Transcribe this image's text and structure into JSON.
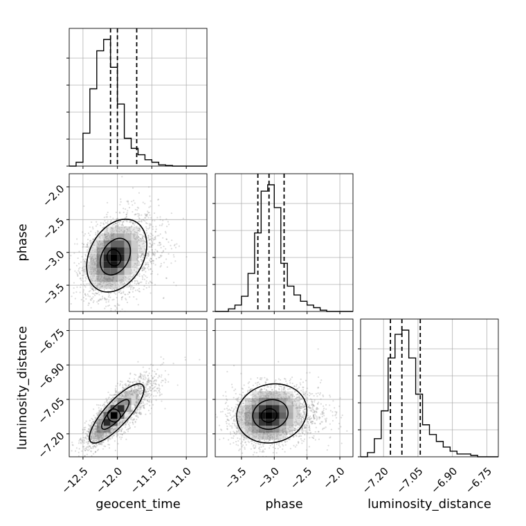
{
  "chart_data": {
    "type": "corner",
    "parameters": [
      "geocent_time",
      "phase",
      "luminosity_distance"
    ],
    "axis_labels": {
      "x": [
        "geocent_time",
        "phase",
        "luminosity_distance"
      ],
      "y_row1": "phase",
      "y_row2": "luminosity_distance"
    },
    "ranges": {
      "geocent_time": [
        -12.7,
        -10.7
      ],
      "phase": [
        -3.9,
        -1.8
      ],
      "luminosity_distance": [
        -7.3,
        -6.7
      ]
    },
    "ticks": {
      "geocent_time": [
        -12.5,
        -12.0,
        -11.5,
        -11.0
      ],
      "phase_x": [
        -3.5,
        -3.0,
        -2.5,
        -2.0
      ],
      "phase_y": [
        -2.0,
        -2.5,
        -3.0,
        -3.5
      ],
      "luminosity_distance_y": [
        -6.75,
        -6.9,
        -7.05,
        -7.2
      ],
      "luminosity_distance_x": [
        -7.2,
        -7.05,
        -6.9,
        -6.75
      ]
    },
    "tick_labels": {
      "geocent_time": [
        "−12.5",
        "−12.0",
        "−11.5",
        "−11.0"
      ],
      "phase_x": [
        "−3.5",
        "−3.0",
        "−2.5",
        "−2.0"
      ],
      "phase_y": [
        "−2.0",
        "−2.5",
        "−3.0",
        "−3.5"
      ],
      "luminosity_distance_y": [
        "−6.75",
        "−6.90",
        "−7.05",
        "−7.20"
      ],
      "luminosity_distance_x": [
        "−7.20",
        "−7.05",
        "−6.90",
        "−6.75"
      ]
    },
    "quantiles": {
      "geocent_time": [
        -12.1,
        -12.0,
        -11.72
      ],
      "phase": [
        -3.25,
        -3.08,
        -2.85
      ],
      "luminosity_distance": [
        -7.17,
        -7.12,
        -7.04
      ]
    },
    "histograms": {
      "geocent_time": {
        "edges": [
          -12.7,
          -12.6,
          -12.5,
          -12.4,
          -12.3,
          -12.2,
          -12.1,
          -12.0,
          -11.9,
          -11.8,
          -11.7,
          -11.6,
          -11.5,
          -11.4,
          -11.3,
          -11.2,
          -11.1,
          -11.0,
          -10.9,
          -10.8,
          -10.7
        ],
        "counts": [
          0.0,
          0.03,
          0.26,
          0.61,
          0.91,
          1.0,
          0.78,
          0.49,
          0.22,
          0.14,
          0.09,
          0.05,
          0.03,
          0.01,
          0.005,
          0.0,
          0.0,
          0.0,
          0.0,
          0.0
        ]
      },
      "phase": {
        "edges": [
          -3.9,
          -3.8,
          -3.7,
          -3.6,
          -3.5,
          -3.4,
          -3.3,
          -3.2,
          -3.1,
          -3.0,
          -2.9,
          -2.8,
          -2.7,
          -2.6,
          -2.5,
          -2.4,
          -2.3,
          -2.2,
          -2.1,
          -2.0,
          -1.9,
          -1.8
        ],
        "counts": [
          0.0,
          0.0,
          0.02,
          0.05,
          0.12,
          0.3,
          0.62,
          0.95,
          1.0,
          0.82,
          0.38,
          0.2,
          0.13,
          0.08,
          0.05,
          0.03,
          0.01,
          0.0,
          0.0,
          0.0,
          0.0
        ]
      },
      "luminosity_distance": {
        "edges": [
          -7.3,
          -7.27,
          -7.24,
          -7.21,
          -7.18,
          -7.15,
          -7.12,
          -7.09,
          -7.06,
          -7.03,
          -7.0,
          -6.97,
          -6.94,
          -6.91,
          -6.88,
          -6.85,
          -6.82,
          -6.79,
          -6.76,
          -6.73,
          -6.7
        ],
        "counts": [
          0.0,
          0.03,
          0.13,
          0.33,
          0.71,
          0.88,
          0.91,
          0.71,
          0.45,
          0.23,
          0.16,
          0.11,
          0.07,
          0.04,
          0.02,
          0.02,
          0.01,
          0.0,
          0.0,
          0.0
        ]
      }
    },
    "joint_2d": [
      {
        "x": "geocent_time",
        "y": "phase",
        "mean": [
          -12.05,
          -3.08
        ],
        "sd": [
          0.22,
          0.28
        ],
        "corr": 0.3
      },
      {
        "x": "geocent_time",
        "y": "luminosity_distance",
        "mean": [
          -12.05,
          -7.12
        ],
        "sd": [
          0.2,
          0.065
        ],
        "corr": 0.82
      },
      {
        "x": "phase",
        "y": "luminosity_distance",
        "mean": [
          -3.08,
          -7.12
        ],
        "sd": [
          0.27,
          0.065
        ],
        "corr": 0.1
      }
    ],
    "contour_levels": [
      0.39,
      0.86
    ],
    "grid": true,
    "legend": "none",
    "colors": {
      "line": "#000000",
      "grid": "#b0b0b0",
      "scatter": "#7f7f7f"
    }
  }
}
